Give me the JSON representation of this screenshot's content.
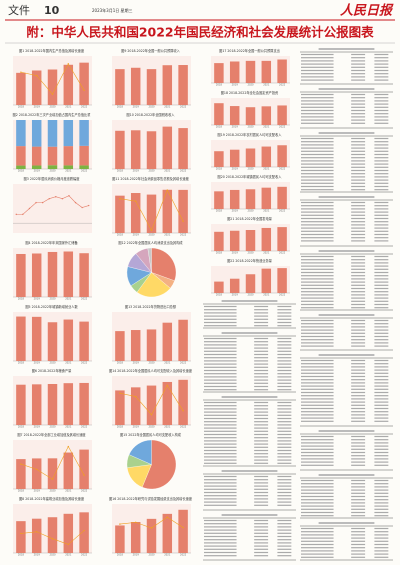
{
  "header": {
    "section": "文件",
    "page": "10",
    "date": "2023年3月1日 星期三",
    "masthead": "人民日报",
    "title": "附：中华人民共和国2022年国民经济和社会发展统计公报图表"
  },
  "chart_data": [
    {
      "type": "bar",
      "title": "图1 2018-2022年国内生产总值及其增长速度",
      "categories": [
        "2018",
        "2019",
        "2020",
        "2021",
        "2022"
      ],
      "ylim": [
        0,
        140
      ],
      "y2lim": [
        0,
        10
      ],
      "series": [
        {
          "color": "#e5806c",
          "values": [
            91.9,
            98.6,
            101.4,
            114.9,
            121.0
          ]
        },
        {
          "color": "#f0a020",
          "axis": "y2",
          "values": [
            6.7,
            6.0,
            2.2,
            8.4,
            3.0
          ]
        }
      ]
    },
    {
      "type": "stacked",
      "title": "图2 2018-2022年三次产业增加值占国内生产总值比重",
      "categories": [
        "2018",
        "2019",
        "2020",
        "2021",
        "2022"
      ],
      "ylim": [
        0,
        100
      ],
      "series": [
        {
          "color": "#7cb342",
          "values": [
            7.0,
            7.1,
            7.7,
            7.3,
            7.3
          ]
        },
        {
          "color": "#e5806c",
          "values": [
            39.7,
            38.6,
            37.8,
            39.4,
            39.9
          ]
        },
        {
          "color": "#6fa8dc",
          "values": [
            53.3,
            54.3,
            54.5,
            53.3,
            52.8
          ]
        }
      ]
    },
    {
      "type": "line",
      "title": "图3 2022年居民消费价格月度涨跌幅度",
      "ylim": [
        -1,
        4
      ],
      "series": [
        {
          "color": "#e5806c",
          "values": [
            0.9,
            0.9,
            1.5,
            2.1,
            2.1,
            2.5,
            2.7,
            2.5,
            2.8,
            2.1,
            1.6,
            1.8
          ]
        }
      ]
    },
    {
      "type": "bar",
      "title": "图4 2018-2022年年末国家外汇储备",
      "categories": [
        "2018",
        "2019",
        "2020",
        "2021",
        "2022"
      ],
      "ylim": [
        0,
        35000
      ],
      "series": [
        {
          "color": "#e5806c",
          "values": [
            30727,
            31079,
            32165,
            32502,
            31277
          ]
        }
      ]
    },
    {
      "type": "bar",
      "title": "图5 2018-2022年城镇新增就业人数",
      "categories": [
        "2018",
        "2019",
        "2020",
        "2021",
        "2022"
      ],
      "ylim": [
        0,
        1500
      ],
      "series": [
        {
          "color": "#e5806c",
          "values": [
            1361,
            1352,
            1186,
            1269,
            1206
          ]
        }
      ]
    },
    {
      "type": "bar",
      "title": "图6 2018-2022年粮食产量",
      "categories": [
        "2018",
        "2019",
        "2020",
        "2021",
        "2022"
      ],
      "ylim": [
        0,
        80000
      ],
      "series": [
        {
          "color": "#e5806c",
          "values": [
            65789,
            66384,
            66949,
            68285,
            68653
          ]
        }
      ]
    },
    {
      "type": "bar",
      "title": "图7 2018-2022年全部工业增加值及其增长速度",
      "categories": [
        "2018",
        "2019",
        "2020",
        "2021",
        "2022"
      ],
      "ylim": [
        0,
        50
      ],
      "y2lim": [
        0,
        12
      ],
      "series": [
        {
          "color": "#e5806c",
          "values": [
            30.5,
            31.2,
            31.3,
            37.2,
            40.2
          ]
        },
        {
          "color": "#f0a020",
          "axis": "y2",
          "values": [
            6.1,
            4.8,
            2.4,
            10.4,
            3.4
          ]
        }
      ]
    },
    {
      "type": "bar",
      "title": "图8 2018-2022年建筑业增加值及其增长速度",
      "categories": [
        "2018",
        "2019",
        "2020",
        "2021",
        "2022"
      ],
      "ylim": [
        0,
        10
      ],
      "y2lim": [
        0,
        12
      ],
      "series": [
        {
          "color": "#e5806c",
          "values": [
            6.5,
            7.0,
            7.3,
            8.0,
            8.3
          ]
        },
        {
          "color": "#f0a020",
          "axis": "y2",
          "values": [
            4.8,
            5.2,
            3.5,
            2.1,
            5.5
          ]
        }
      ]
    },
    {
      "type": "bar",
      "title": "图9 2018-2022年全国一般公共预算收入",
      "categories": [
        "2018",
        "2019",
        "2020",
        "2021",
        "2022"
      ],
      "ylim": [
        0,
        25
      ],
      "series": [
        {
          "color": "#e5806c",
          "values": [
            18.3,
            19.0,
            18.3,
            20.3,
            20.4
          ]
        }
      ]
    },
    {
      "type": "bar",
      "title": "图10 2018-2022年全国税收收入",
      "categories": [
        "2018",
        "2019",
        "2020",
        "2021",
        "2022"
      ],
      "ylim": [
        0,
        20
      ],
      "series": [
        {
          "color": "#e5806c",
          "values": [
            15.6,
            15.8,
            15.4,
            17.3,
            16.7
          ]
        }
      ]
    },
    {
      "type": "bar",
      "title": "图11 2018-2022年社会消费品零售总额及其增长速度",
      "categories": [
        "2018",
        "2019",
        "2020",
        "2021",
        "2022"
      ],
      "ylim": [
        0,
        50
      ],
      "y2lim": [
        -5,
        15
      ],
      "series": [
        {
          "color": "#e5806c",
          "values": [
            38.1,
            40.8,
            39.2,
            44.1,
            44.0
          ]
        },
        {
          "color": "#f0a020",
          "axis": "y2",
          "values": [
            9.0,
            8.0,
            -3.9,
            12.5,
            -0.2
          ]
        }
      ]
    },
    {
      "type": "pie",
      "title": "图12 2022年全国居民人均消费支出及其构成",
      "series": [
        {
          "colors": [
            "#e5806c",
            "#f4b183",
            "#ffd966",
            "#a9d18e",
            "#6fa8dc",
            "#b4a7d6",
            "#d5a6bd",
            "#c9c9c9"
          ],
          "values": [
            30.5,
            5.6,
            24.0,
            5.8,
            13.0,
            10.1,
            8.6,
            2.4
          ]
        }
      ]
    },
    {
      "type": "bar",
      "title": "图13 2018-2022年货物进出口总额",
      "categories": [
        "2018",
        "2019",
        "2020",
        "2021",
        "2022"
      ],
      "ylim": [
        0,
        50
      ],
      "series": [
        {
          "color": "#e5806c",
          "values": [
            30.5,
            31.6,
            32.2,
            39.1,
            42.1
          ]
        }
      ]
    },
    {
      "type": "bar",
      "title": "图14 2018-2022年全国居民人均可支配收入及其增长速度",
      "categories": [
        "2018",
        "2019",
        "2020",
        "2021",
        "2022"
      ],
      "ylim": [
        0,
        40000
      ],
      "y2lim": [
        0,
        10
      ],
      "series": [
        {
          "color": "#e5806c",
          "values": [
            28228,
            30733,
            32189,
            35128,
            36883
          ]
        },
        {
          "color": "#f0a020",
          "axis": "y2",
          "values": [
            6.5,
            5.8,
            2.1,
            8.1,
            2.9
          ]
        }
      ]
    },
    {
      "type": "pie",
      "title": "图15 2022年全国居民人均可支配收入构成",
      "series": [
        {
          "colors": [
            "#e5806c",
            "#ffd966",
            "#a9d18e",
            "#6fa8dc"
          ],
          "values": [
            56.2,
            16.7,
            8.7,
            18.4
          ]
        }
      ]
    },
    {
      "type": "bar",
      "title": "图16 2018-2022年研究与试验发展经费支出及其增长速度",
      "categories": [
        "2018",
        "2019",
        "2020",
        "2021",
        "2022"
      ],
      "ylim": [
        0,
        35000
      ],
      "y2lim": [
        0,
        20
      ],
      "series": [
        {
          "color": "#e5806c",
          "values": [
            19678,
            22144,
            24393,
            27956,
            30870
          ]
        },
        {
          "color": "#f0a020",
          "axis": "y2",
          "values": [
            11.8,
            12.5,
            10.2,
            14.6,
            10.4
          ]
        }
      ]
    },
    {
      "type": "bar",
      "title": "图17 2018-2022年全国一般公共预算支出",
      "categories": [
        "2018",
        "2019",
        "2020",
        "2021",
        "2022"
      ],
      "ylim": [
        0,
        30
      ],
      "series": [
        {
          "color": "#e5806c",
          "values": [
            22.1,
            23.9,
            24.6,
            24.6,
            26.1
          ]
        }
      ]
    },
    {
      "type": "bar",
      "title": "图18 2018-2022年全社会固定资产投资",
      "categories": [
        "2018",
        "2019",
        "2020",
        "2021",
        "2022"
      ],
      "ylim": [
        0,
        80
      ],
      "series": [
        {
          "color": "#e5806c",
          "values": [
            64.6,
            56.1,
            52.7,
            55.3,
            57.9
          ]
        }
      ]
    },
    {
      "type": "bar",
      "title": "图19 2018-2022年农村居民人均可支配收入",
      "categories": [
        "2018",
        "2019",
        "2020",
        "2021",
        "2022"
      ],
      "ylim": [
        0,
        25000
      ],
      "series": [
        {
          "color": "#e5806c",
          "values": [
            14617,
            16021,
            17131,
            18931,
            20133
          ]
        }
      ]
    },
    {
      "type": "bar",
      "title": "图20 2018-2022年城镇居民人均可支配收入",
      "categories": [
        "2018",
        "2019",
        "2020",
        "2021",
        "2022"
      ],
      "ylim": [
        0,
        60000
      ],
      "series": [
        {
          "color": "#e5806c",
          "values": [
            39251,
            42359,
            43834,
            47412,
            49283
          ]
        }
      ]
    },
    {
      "type": "bar",
      "title": "图21 2018-2022年全国发电量",
      "categories": [
        "2018",
        "2019",
        "2020",
        "2021",
        "2022"
      ],
      "ylim": [
        0,
        100000
      ],
      "series": [
        {
          "color": "#e5806c",
          "values": [
            71118,
            75034,
            77791,
            85342,
            88487
          ]
        }
      ]
    },
    {
      "type": "bar",
      "title": "图22 2018-2022年快递业务量",
      "categories": [
        "2018",
        "2019",
        "2020",
        "2021",
        "2022"
      ],
      "ylim": [
        0,
        1200
      ],
      "series": [
        {
          "color": "#e5806c",
          "values": [
            507,
            635,
            833,
            1083,
            1106
          ]
        }
      ]
    }
  ]
}
